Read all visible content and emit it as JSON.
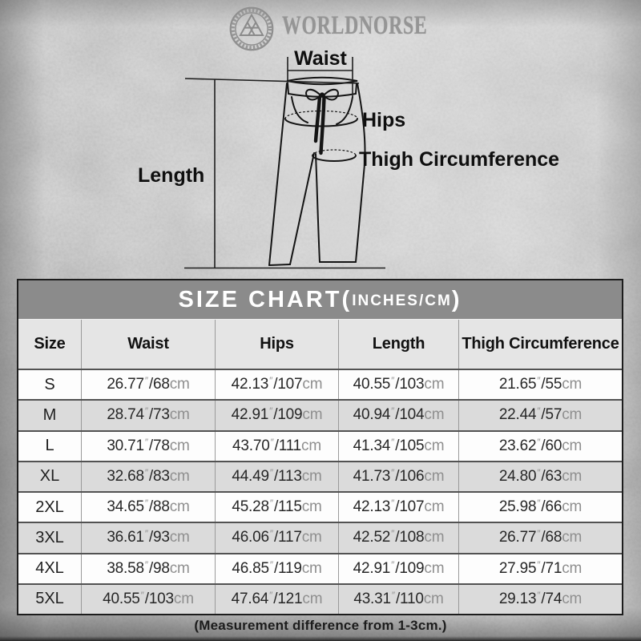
{
  "brand": {
    "name": "WORLDNORSE",
    "logo_icon": "valknut-circle-logo"
  },
  "diagram": {
    "labels": {
      "waist": "Waist",
      "hips": "Hips",
      "thigh": "Thigh Circumference",
      "length": "Length"
    }
  },
  "size_chart": {
    "title_prefix": "SIZE CHART(",
    "title_units": "INCHES/CM",
    "title_suffix": ")",
    "columns": [
      "Size",
      "Waist",
      "Hips",
      "Length",
      "Thigh Circumference"
    ],
    "value_format": {
      "inch_mark": "″",
      "separator": "/",
      "cm_unit": "cm"
    },
    "rows": [
      {
        "size": "S",
        "values": [
          {
            "in": "26.77",
            "cm": "68"
          },
          {
            "in": "42.13",
            "cm": "107"
          },
          {
            "in": "40.55",
            "cm": "103"
          },
          {
            "in": "21.65",
            "cm": "55"
          }
        ]
      },
      {
        "size": "M",
        "values": [
          {
            "in": "28.74",
            "cm": "73"
          },
          {
            "in": "42.91",
            "cm": "109"
          },
          {
            "in": "40.94",
            "cm": "104"
          },
          {
            "in": "22.44",
            "cm": "57"
          }
        ]
      },
      {
        "size": "L",
        "values": [
          {
            "in": "30.71",
            "cm": "78"
          },
          {
            "in": "43.70",
            "cm": "111"
          },
          {
            "in": "41.34",
            "cm": "105"
          },
          {
            "in": "23.62",
            "cm": "60"
          }
        ]
      },
      {
        "size": "XL",
        "values": [
          {
            "in": "32.68",
            "cm": "83"
          },
          {
            "in": "44.49",
            "cm": "113"
          },
          {
            "in": "41.73",
            "cm": "106"
          },
          {
            "in": "24.80",
            "cm": "63"
          }
        ]
      },
      {
        "size": "2XL",
        "values": [
          {
            "in": "34.65",
            "cm": "88"
          },
          {
            "in": "45.28",
            "cm": "115"
          },
          {
            "in": "42.13",
            "cm": "107"
          },
          {
            "in": "25.98",
            "cm": "66"
          }
        ]
      },
      {
        "size": "3XL",
        "values": [
          {
            "in": "36.61",
            "cm": "93"
          },
          {
            "in": "46.06",
            "cm": "117"
          },
          {
            "in": "42.52",
            "cm": "108"
          },
          {
            "in": "26.77",
            "cm": "68"
          }
        ]
      },
      {
        "size": "4XL",
        "values": [
          {
            "in": "38.58",
            "cm": "98"
          },
          {
            "in": "46.85",
            "cm": "119"
          },
          {
            "in": "42.91",
            "cm": "109"
          },
          {
            "in": "27.95",
            "cm": "71"
          }
        ]
      },
      {
        "size": "5XL",
        "values": [
          {
            "in": "40.55",
            "cm": "103"
          },
          {
            "in": "47.64",
            "cm": "121"
          },
          {
            "in": "43.31",
            "cm": "110"
          },
          {
            "in": "29.13",
            "cm": "74"
          }
        ]
      }
    ]
  },
  "footer": {
    "note": "(Measurement difference from 1-3cm.)"
  },
  "colors": {
    "title_bar": "#8b8b8b",
    "header_row": "#e5e5e5",
    "row_light": "#fdfdfd",
    "row_shaded": "#dbdbdb",
    "table_border": "#1d1d1d",
    "ink": "#1a1a1a",
    "muted_text": "#8f8f8f",
    "background": "#c6c6c6"
  }
}
